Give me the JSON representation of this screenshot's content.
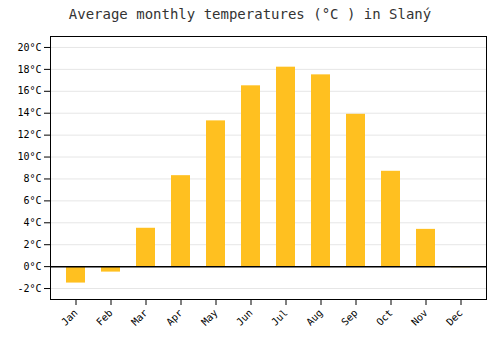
{
  "chart_data": {
    "type": "bar",
    "title": "Average monthly temperatures (°C ) in Slaný",
    "categories": [
      "Jan",
      "Feb",
      "Mar",
      "Apr",
      "May",
      "Jun",
      "Jul",
      "Aug",
      "Sep",
      "Oct",
      "Nov",
      "Dec"
    ],
    "values": [
      -1.5,
      -0.5,
      3.5,
      8.3,
      13.3,
      16.5,
      18.2,
      17.5,
      13.9,
      8.7,
      3.4,
      -0.1
    ],
    "color": "#FFC020",
    "ylim": [
      -3,
      21
    ],
    "yticks": [
      {
        "value": -2,
        "label": "-2°C"
      },
      {
        "value": 0,
        "label": "0°C"
      },
      {
        "value": 2,
        "label": "2°C"
      },
      {
        "value": 4,
        "label": "4°C"
      },
      {
        "value": 6,
        "label": "6°C"
      },
      {
        "value": 8,
        "label": "8°C"
      },
      {
        "value": 10,
        "label": "10°C"
      },
      {
        "value": 12,
        "label": "12°C"
      },
      {
        "value": 14,
        "label": "14°C"
      },
      {
        "value": 16,
        "label": "16°C"
      },
      {
        "value": 18,
        "label": "18°C"
      },
      {
        "value": 20,
        "label": "20°C"
      }
    ],
    "grid": true
  }
}
